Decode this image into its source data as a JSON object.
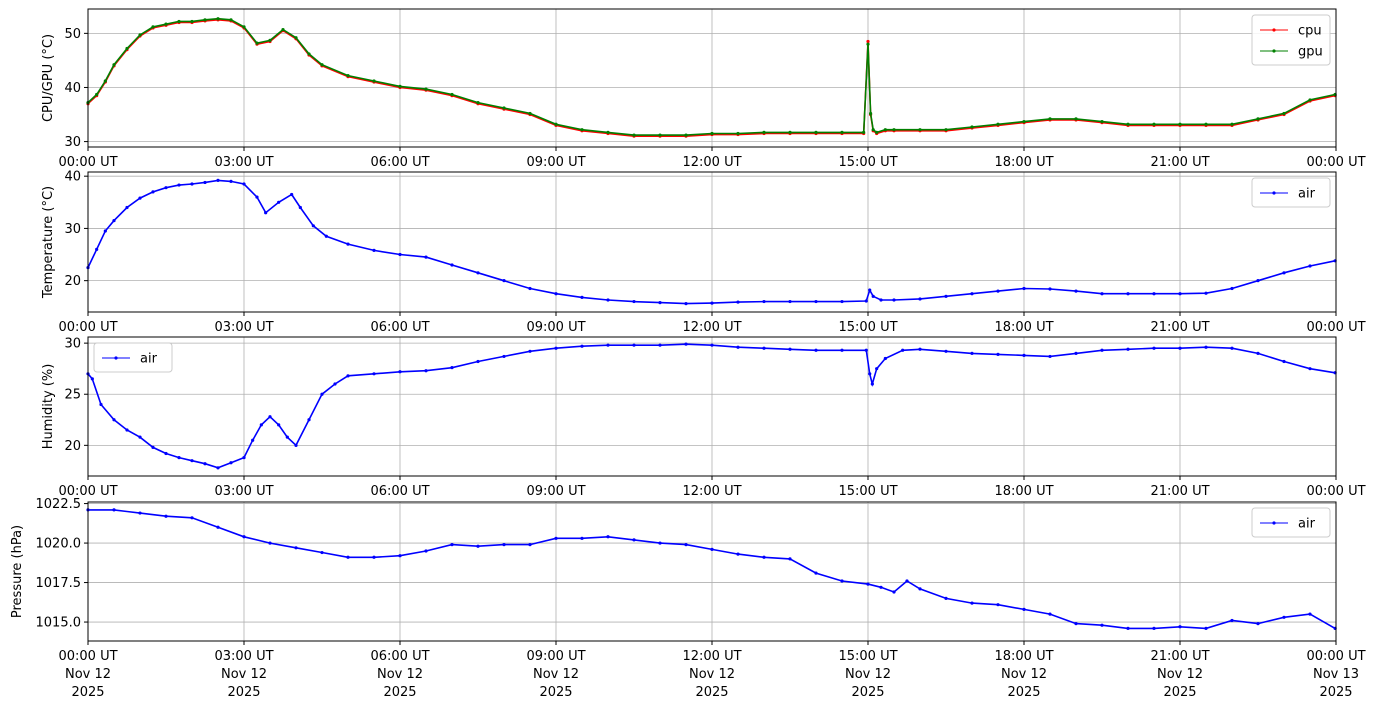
{
  "x_tick_labels": [
    "00:00 UT",
    "03:00 UT",
    "06:00 UT",
    "09:00 UT",
    "12:00 UT",
    "15:00 UT",
    "18:00 UT",
    "21:00 UT",
    "00:00 UT"
  ],
  "x_tick_dates": [
    "Nov 12",
    "Nov 12",
    "Nov 12",
    "Nov 12",
    "Nov 12",
    "Nov 12",
    "Nov 12",
    "Nov 12",
    "Nov 13"
  ],
  "x_tick_years": [
    "2025",
    "2025",
    "2025",
    "2025",
    "2025",
    "2025",
    "2025",
    "2025",
    "2025"
  ],
  "chart_data": [
    {
      "type": "line",
      "ylabel": "CPU/GPU (°C)",
      "xlim": [
        "2025-11-12 00:00",
        "2025-11-13 00:00"
      ],
      "ylim": [
        29,
        54.5
      ],
      "yticks": [
        30,
        40,
        50
      ],
      "grid": true,
      "legend": "top-right",
      "x": [
        "00:00",
        "00:10",
        "00:20",
        "00:30",
        "00:45",
        "01:00",
        "01:15",
        "01:30",
        "01:45",
        "02:00",
        "02:15",
        "02:30",
        "02:45",
        "03:00",
        "03:15",
        "03:30",
        "03:45",
        "04:00",
        "04:15",
        "04:30",
        "05:00",
        "05:30",
        "06:00",
        "06:30",
        "07:00",
        "07:30",
        "08:00",
        "08:30",
        "09:00",
        "09:30",
        "10:00",
        "10:30",
        "11:00",
        "11:30",
        "12:00",
        "12:30",
        "13:00",
        "13:30",
        "14:00",
        "14:30",
        "14:55",
        "15:00",
        "15:03",
        "15:06",
        "15:10",
        "15:20",
        "15:30",
        "16:00",
        "16:30",
        "17:00",
        "17:30",
        "18:00",
        "18:30",
        "19:00",
        "19:30",
        "20:00",
        "20:30",
        "21:00",
        "21:30",
        "22:00",
        "22:30",
        "23:00",
        "23:30",
        "23:59"
      ],
      "series": [
        {
          "name": "cpu",
          "color": "#ff0000",
          "values": [
            37,
            38.5,
            41,
            44,
            47,
            49.5,
            51,
            51.5,
            52,
            52,
            52.3,
            52.5,
            52.3,
            51,
            48,
            48.5,
            50.5,
            49,
            46,
            44,
            42,
            41,
            40,
            39.5,
            38.5,
            37,
            36,
            35,
            33,
            32,
            31.5,
            31,
            31,
            31,
            31.3,
            31.3,
            31.5,
            31.5,
            31.5,
            31.5,
            31.5,
            48.5,
            35,
            32,
            31.5,
            32,
            32,
            32,
            32,
            32.5,
            33,
            33.5,
            34,
            34,
            33.5,
            33,
            33,
            33,
            33,
            33,
            34,
            35,
            37.5,
            38.5
          ]
        },
        {
          "name": "gpu",
          "color": "#008000",
          "values": [
            37.2,
            38.7,
            41.2,
            44.2,
            47.2,
            49.7,
            51.2,
            51.7,
            52.2,
            52.2,
            52.5,
            52.7,
            52.5,
            51.2,
            48.2,
            48.7,
            50.7,
            49.2,
            46.2,
            44.2,
            42.2,
            41.2,
            40.2,
            39.7,
            38.7,
            37.2,
            36.2,
            35.2,
            33.2,
            32.2,
            31.7,
            31.2,
            31.2,
            31.2,
            31.5,
            31.5,
            31.7,
            31.7,
            31.7,
            31.7,
            31.7,
            48,
            35.2,
            32.2,
            31.7,
            32.2,
            32.2,
            32.2,
            32.2,
            32.7,
            33.2,
            33.7,
            34.2,
            34.2,
            33.7,
            33.2,
            33.2,
            33.2,
            33.2,
            33.2,
            34.2,
            35.2,
            37.7,
            38.7
          ]
        }
      ]
    },
    {
      "type": "line",
      "ylabel": "Temperature (°C)",
      "xlim": [
        "2025-11-12 00:00",
        "2025-11-13 00:00"
      ],
      "ylim": [
        14,
        40.8
      ],
      "yticks": [
        20,
        30,
        40
      ],
      "grid": true,
      "legend": "top-right",
      "x": [
        "00:00",
        "00:10",
        "00:20",
        "00:30",
        "00:45",
        "01:00",
        "01:15",
        "01:30",
        "01:45",
        "02:00",
        "02:15",
        "02:30",
        "02:45",
        "03:00",
        "03:15",
        "03:25",
        "03:40",
        "03:55",
        "04:05",
        "04:20",
        "04:35",
        "05:00",
        "05:30",
        "06:00",
        "06:30",
        "07:00",
        "07:30",
        "08:00",
        "08:30",
        "09:00",
        "09:30",
        "10:00",
        "10:30",
        "11:00",
        "11:30",
        "12:00",
        "12:30",
        "13:00",
        "13:30",
        "14:00",
        "14:30",
        "14:58",
        "15:02",
        "15:06",
        "15:15",
        "15:30",
        "16:00",
        "16:30",
        "17:00",
        "17:30",
        "18:00",
        "18:30",
        "19:00",
        "19:30",
        "20:00",
        "20:30",
        "21:00",
        "21:30",
        "22:00",
        "22:30",
        "23:00",
        "23:30",
        "23:59"
      ],
      "series": [
        {
          "name": "air",
          "color": "#0000ff",
          "values": [
            22.5,
            26,
            29.5,
            31.5,
            34,
            35.8,
            37,
            37.8,
            38.3,
            38.5,
            38.8,
            39.2,
            39,
            38.5,
            36,
            33,
            35,
            36.5,
            34,
            30.5,
            28.5,
            27,
            25.8,
            25,
            24.5,
            23,
            21.5,
            20,
            18.5,
            17.5,
            16.8,
            16.3,
            16,
            15.8,
            15.6,
            15.7,
            15.9,
            16,
            16,
            16,
            16,
            16.1,
            18.2,
            17,
            16.3,
            16.3,
            16.5,
            17,
            17.5,
            18,
            18.5,
            18.4,
            18,
            17.5,
            17.5,
            17.5,
            17.5,
            17.6,
            18.5,
            20,
            21.5,
            22.8,
            23.8
          ]
        }
      ]
    },
    {
      "type": "line",
      "ylabel": "Humidity (%)",
      "xlim": [
        "2025-11-12 00:00",
        "2025-11-13 00:00"
      ],
      "ylim": [
        17,
        30.6
      ],
      "yticks": [
        20,
        25,
        30
      ],
      "grid": true,
      "legend": "top-left",
      "x": [
        "00:00",
        "00:05",
        "00:15",
        "00:30",
        "00:45",
        "01:00",
        "01:15",
        "01:30",
        "01:45",
        "02:00",
        "02:15",
        "02:30",
        "02:45",
        "03:00",
        "03:10",
        "03:20",
        "03:30",
        "03:40",
        "03:50",
        "04:00",
        "04:15",
        "04:30",
        "04:45",
        "05:00",
        "05:30",
        "06:00",
        "06:30",
        "07:00",
        "07:30",
        "08:00",
        "08:30",
        "09:00",
        "09:30",
        "10:00",
        "10:30",
        "11:00",
        "11:30",
        "12:00",
        "12:30",
        "13:00",
        "13:30",
        "14:00",
        "14:30",
        "14:58",
        "15:02",
        "15:05",
        "15:10",
        "15:20",
        "15:40",
        "16:00",
        "16:30",
        "17:00",
        "17:30",
        "18:00",
        "18:30",
        "19:00",
        "19:30",
        "20:00",
        "20:30",
        "21:00",
        "21:30",
        "22:00",
        "22:30",
        "23:00",
        "23:30",
        "23:59"
      ],
      "series": [
        {
          "name": "air",
          "color": "#0000ff",
          "values": [
            27,
            26.5,
            24,
            22.5,
            21.5,
            20.8,
            19.8,
            19.2,
            18.8,
            18.5,
            18.2,
            17.8,
            18.3,
            18.8,
            20.5,
            22,
            22.8,
            22,
            20.8,
            20,
            22.5,
            25,
            26,
            26.8,
            27,
            27.2,
            27.3,
            27.6,
            28.2,
            28.7,
            29.2,
            29.5,
            29.7,
            29.8,
            29.8,
            29.8,
            29.9,
            29.8,
            29.6,
            29.5,
            29.4,
            29.3,
            29.3,
            29.3,
            27,
            26,
            27.5,
            28.5,
            29.3,
            29.4,
            29.2,
            29,
            28.9,
            28.8,
            28.7,
            29,
            29.3,
            29.4,
            29.5,
            29.5,
            29.6,
            29.5,
            29,
            28.2,
            27.5,
            27.1
          ]
        }
      ]
    },
    {
      "type": "line",
      "ylabel": "Pressure (hPa)",
      "xlim": [
        "2025-11-12 00:00",
        "2025-11-13 00:00"
      ],
      "ylim": [
        1013.8,
        1022.6
      ],
      "yticks": [
        1015.0,
        1017.5,
        1020.0,
        1022.5
      ],
      "grid": true,
      "legend": "top-right",
      "x": [
        "00:00",
        "00:30",
        "01:00",
        "01:30",
        "02:00",
        "02:30",
        "03:00",
        "03:30",
        "04:00",
        "04:30",
        "05:00",
        "05:30",
        "06:00",
        "06:30",
        "07:00",
        "07:30",
        "08:00",
        "08:30",
        "09:00",
        "09:30",
        "10:00",
        "10:30",
        "11:00",
        "11:30",
        "12:00",
        "12:30",
        "13:00",
        "13:30",
        "14:00",
        "14:30",
        "15:00",
        "15:15",
        "15:30",
        "15:45",
        "16:00",
        "16:30",
        "17:00",
        "17:30",
        "18:00",
        "18:30",
        "19:00",
        "19:30",
        "20:00",
        "20:30",
        "21:00",
        "21:30",
        "22:00",
        "22:30",
        "23:00",
        "23:30",
        "23:59"
      ],
      "series": [
        {
          "name": "air",
          "color": "#0000ff",
          "values": [
            1022.1,
            1022.1,
            1021.9,
            1021.7,
            1021.6,
            1021,
            1020.4,
            1020,
            1019.7,
            1019.4,
            1019.1,
            1019.1,
            1019.2,
            1019.5,
            1019.9,
            1019.8,
            1019.9,
            1019.9,
            1020.3,
            1020.3,
            1020.4,
            1020.2,
            1020,
            1019.9,
            1019.6,
            1019.3,
            1019.1,
            1019,
            1018.1,
            1017.6,
            1017.4,
            1017.2,
            1016.9,
            1017.6,
            1017.1,
            1016.5,
            1016.2,
            1016.1,
            1015.8,
            1015.5,
            1014.9,
            1014.8,
            1014.6,
            1014.6,
            1014.7,
            1014.6,
            1015.1,
            1014.9,
            1015.3,
            1015.5,
            1014.6
          ]
        }
      ]
    }
  ]
}
